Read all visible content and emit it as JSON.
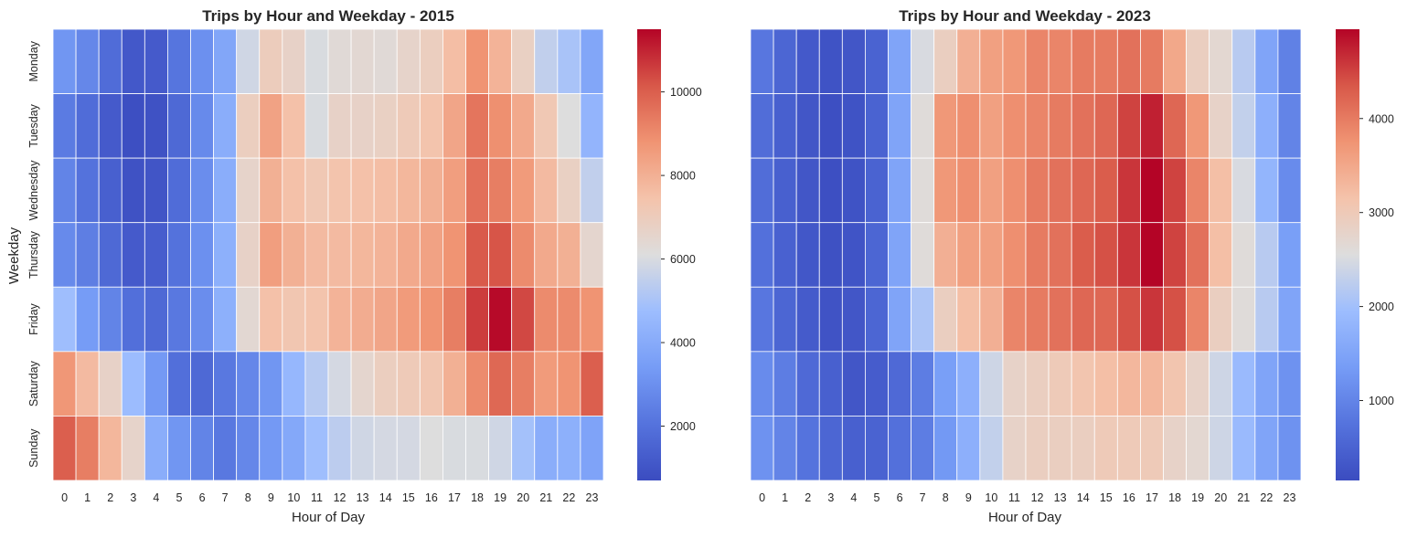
{
  "chart_data": [
    {
      "type": "heatmap",
      "title": "Trips by Hour and Weekday - 2015",
      "xlabel": "Hour of Day",
      "ylabel": "Weekday",
      "x": [
        0,
        1,
        2,
        3,
        4,
        5,
        6,
        7,
        8,
        9,
        10,
        11,
        12,
        13,
        14,
        15,
        16,
        17,
        18,
        19,
        20,
        21,
        22,
        23
      ],
      "y": [
        "Monday",
        "Tuesday",
        "Wednesday",
        "Thursday",
        "Friday",
        "Saturday",
        "Sunday"
      ],
      "colormap": "coolwarm",
      "vmin": 700,
      "vmax": 11500,
      "colorbar_ticks": [
        2000,
        4000,
        6000,
        8000,
        10000
      ],
      "values": [
        [
          3200,
          2700,
          1800,
          1100,
          1200,
          2100,
          3000,
          3800,
          5800,
          7000,
          6700,
          6000,
          6300,
          6400,
          6300,
          6600,
          6900,
          7600,
          8800,
          7900,
          6800,
          5500,
          5000,
          3800
        ],
        [
          2300,
          1800,
          1200,
          800,
          900,
          1700,
          2800,
          4100,
          6900,
          8400,
          7500,
          6000,
          6700,
          6700,
          6800,
          7100,
          7400,
          8300,
          9500,
          8900,
          8200,
          7200,
          6100,
          4400
        ],
        [
          2600,
          2000,
          1400,
          900,
          1000,
          1800,
          2900,
          4100,
          6600,
          8000,
          7500,
          7200,
          7400,
          7500,
          7600,
          7800,
          8000,
          8500,
          9600,
          9300,
          8600,
          7700,
          6800,
          5500
        ],
        [
          2800,
          2400,
          1700,
          1200,
          1300,
          2000,
          3000,
          4200,
          6700,
          8500,
          8000,
          7700,
          7700,
          7800,
          7900,
          8200,
          8400,
          8800,
          10100,
          10200,
          9000,
          8200,
          8000,
          6500
        ],
        [
          4800,
          3400,
          2600,
          1900,
          1700,
          2200,
          2900,
          4200,
          6400,
          7500,
          7300,
          7400,
          7900,
          8100,
          8300,
          8600,
          8800,
          9300,
          10600,
          11400,
          10400,
          9000,
          9000,
          8800
        ],
        [
          8700,
          7700,
          6700,
          4700,
          3300,
          1900,
          1700,
          2200,
          2700,
          3200,
          4500,
          5300,
          5900,
          6500,
          6900,
          7100,
          7300,
          8000,
          9000,
          9800,
          9300,
          8600,
          8800,
          10000
        ],
        [
          10000,
          9300,
          7800,
          6600,
          4100,
          3200,
          2600,
          2200,
          2700,
          3300,
          3900,
          4800,
          5400,
          5800,
          5900,
          5900,
          6100,
          6000,
          6000,
          5800,
          4900,
          4100,
          4200,
          3700
        ]
      ]
    },
    {
      "type": "heatmap",
      "title": "Trips by Hour and Weekday - 2023",
      "xlabel": "Hour of Day",
      "ylabel": "",
      "x": [
        0,
        1,
        2,
        3,
        4,
        5,
        6,
        7,
        8,
        9,
        10,
        11,
        12,
        13,
        14,
        15,
        16,
        17,
        18,
        19,
        20,
        21,
        22,
        23
      ],
      "y": [
        "Monday",
        "Tuesday",
        "Wednesday",
        "Thursday",
        "Friday",
        "Saturday",
        "Sunday"
      ],
      "colormap": "coolwarm",
      "vmin": 150,
      "vmax": 4950,
      "colorbar_ticks": [
        1000,
        2000,
        3000,
        4000
      ],
      "values": [
        [
          800,
          550,
          350,
          250,
          300,
          500,
          1500,
          2500,
          2900,
          3400,
          3600,
          3700,
          3900,
          3900,
          4000,
          4000,
          4100,
          4000,
          3500,
          2900,
          2700,
          2200,
          1500,
          950
        ],
        [
          650,
          450,
          300,
          200,
          250,
          500,
          1500,
          2600,
          3700,
          3800,
          3600,
          3800,
          3900,
          4000,
          4100,
          4200,
          4500,
          4750,
          4200,
          3700,
          2800,
          2300,
          1700,
          1000
        ],
        [
          650,
          450,
          300,
          200,
          250,
          500,
          1500,
          2600,
          3700,
          3800,
          3600,
          3800,
          4000,
          4100,
          4200,
          4300,
          4600,
          4950,
          4500,
          3900,
          3200,
          2500,
          1800,
          1100
        ],
        [
          700,
          480,
          320,
          220,
          270,
          550,
          1500,
          2600,
          3400,
          3600,
          3600,
          3800,
          4000,
          4100,
          4300,
          4400,
          4600,
          4950,
          4500,
          4100,
          3200,
          2600,
          2200,
          1400
        ],
        [
          800,
          550,
          380,
          260,
          300,
          550,
          1500,
          2100,
          2900,
          3200,
          3400,
          3900,
          4000,
          4100,
          4200,
          4200,
          4400,
          4600,
          4400,
          3900,
          2900,
          2600,
          2200,
          1500
        ],
        [
          1100,
          900,
          600,
          450,
          300,
          400,
          600,
          900,
          1400,
          1700,
          2400,
          2800,
          2900,
          3000,
          3100,
          3200,
          3300,
          3300,
          3100,
          2800,
          2400,
          1900,
          1500,
          1200
        ],
        [
          1200,
          1000,
          750,
          550,
          450,
          500,
          700,
          900,
          1300,
          1700,
          2300,
          2800,
          2900,
          2900,
          2900,
          3000,
          3000,
          3000,
          2800,
          2700,
          2400,
          1900,
          1500,
          1200
        ]
      ]
    }
  ]
}
